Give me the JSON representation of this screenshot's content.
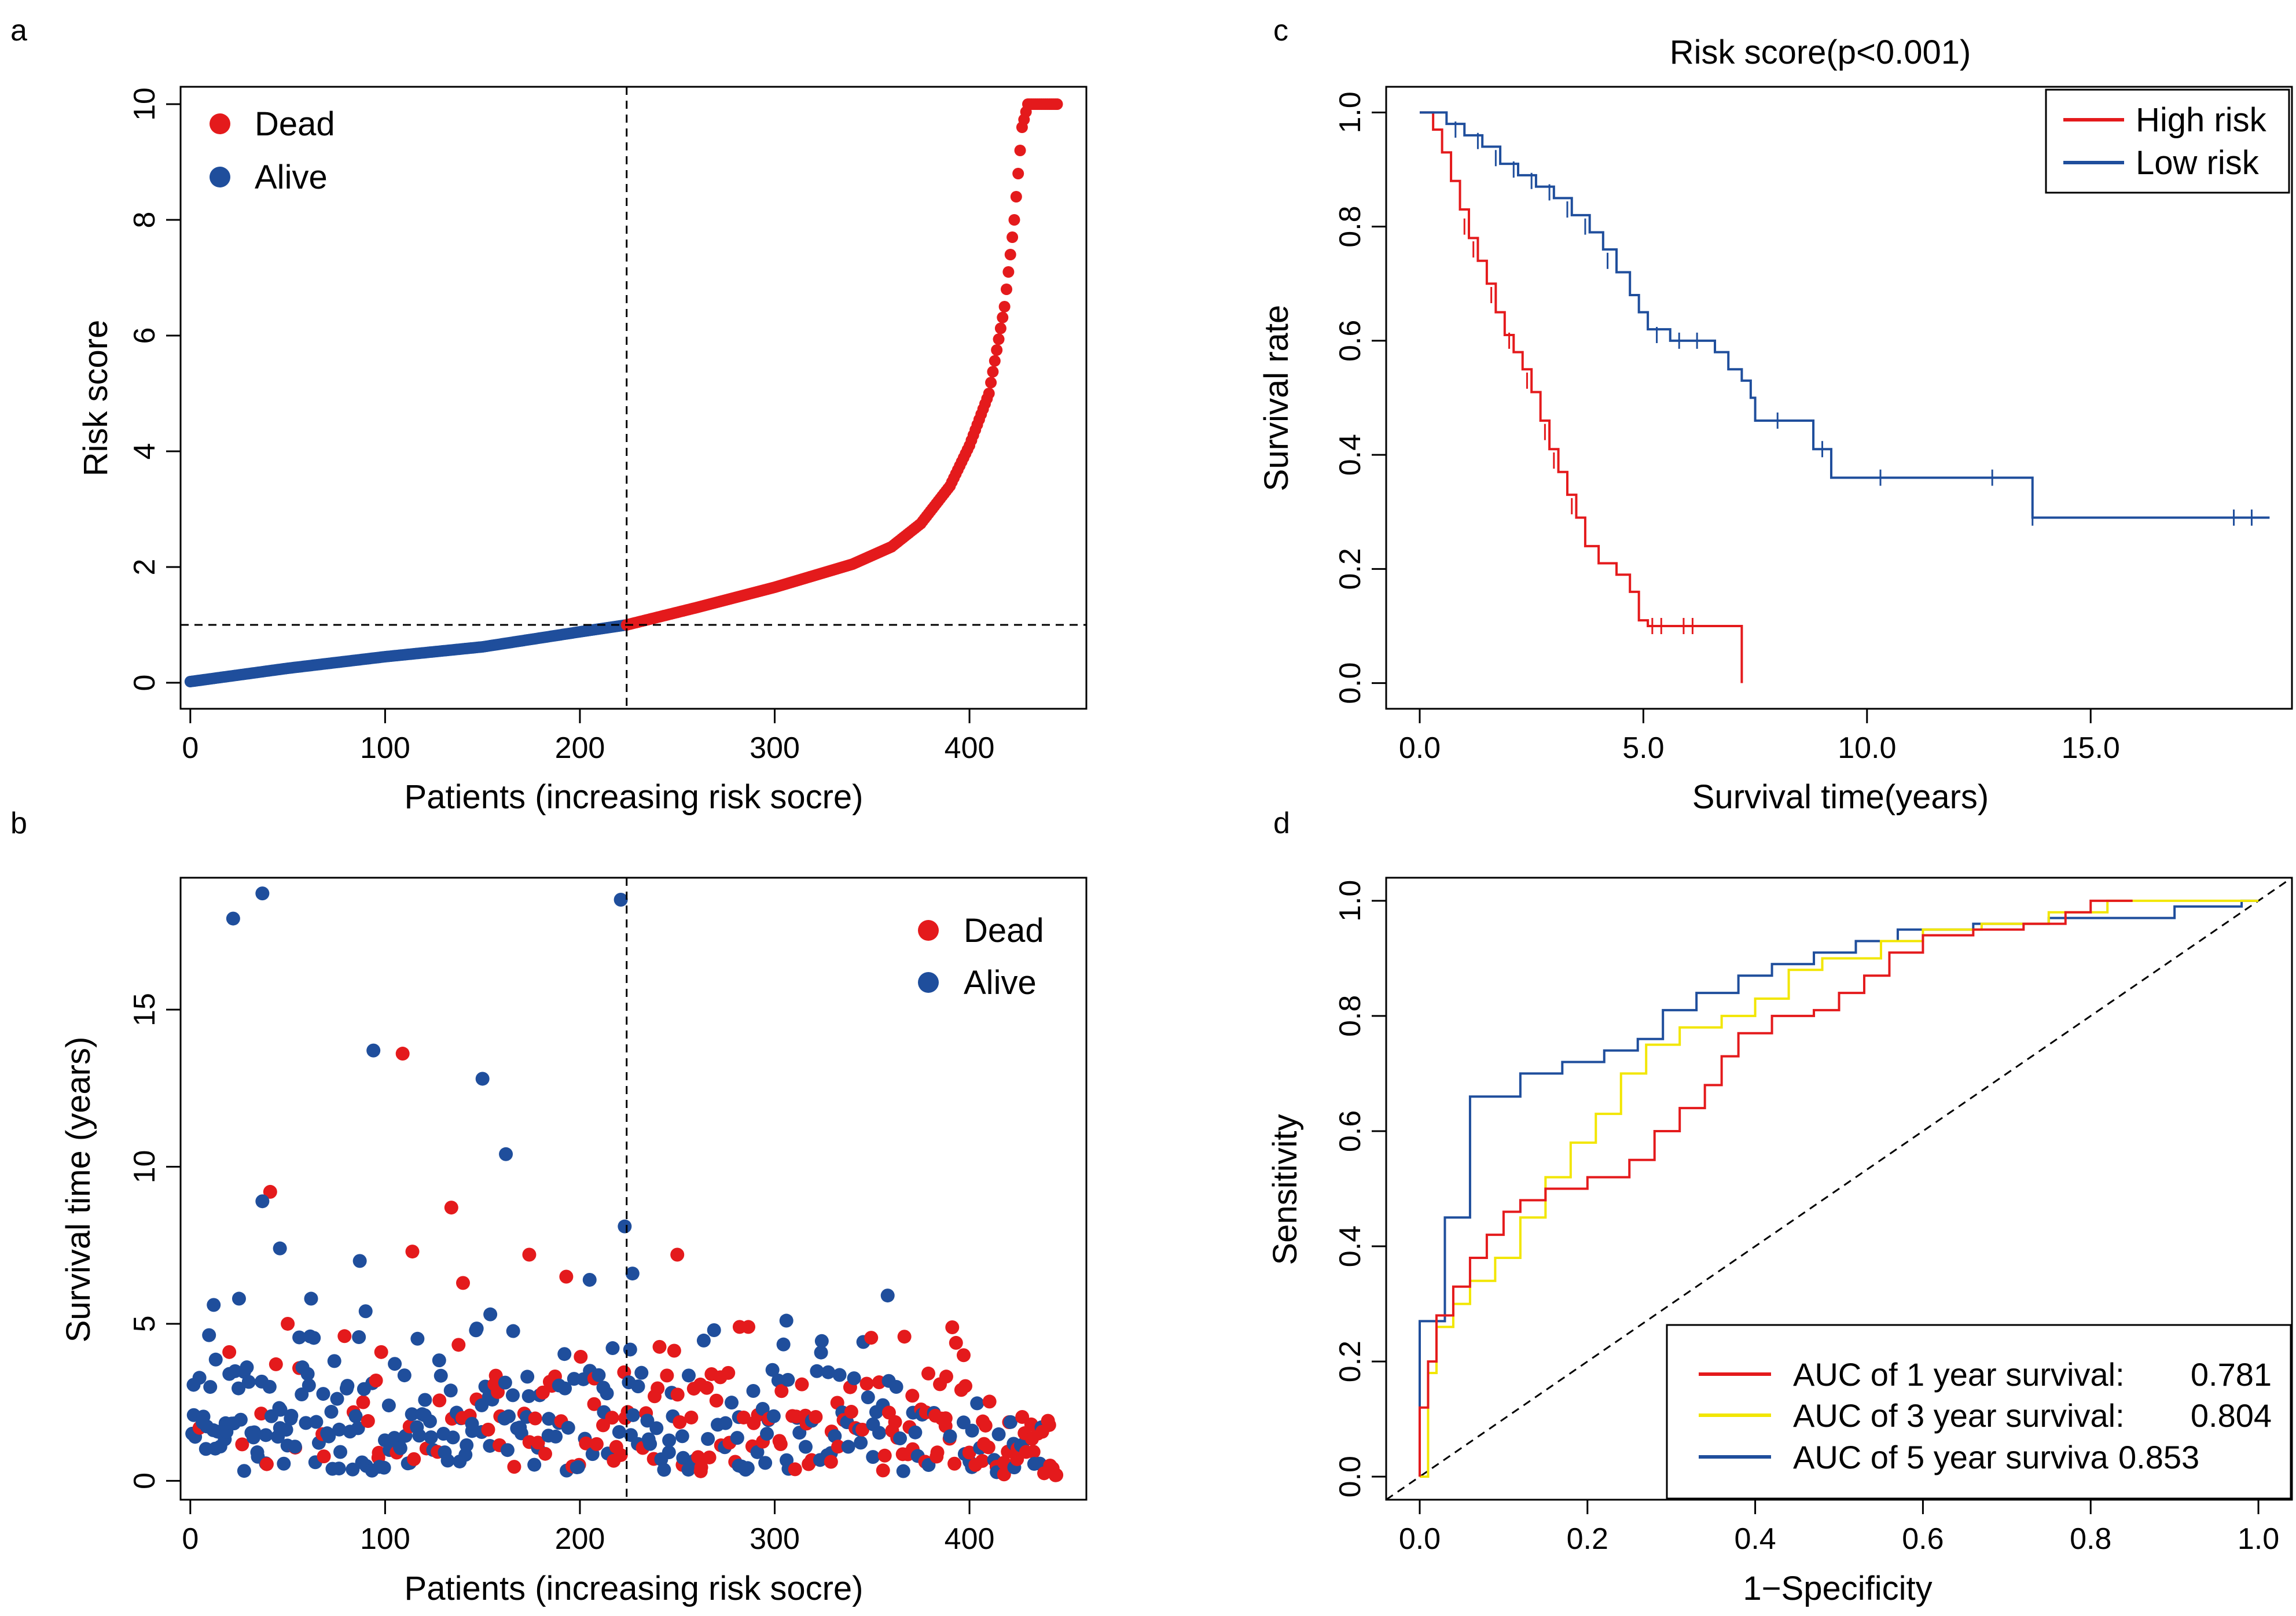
{
  "colors": {
    "dead": "#e41a1c",
    "alive": "#1f4e9c",
    "high": "#e41a1c",
    "low": "#1f4e9c",
    "auc1": "#e41a1c",
    "auc3": "#f2e600",
    "auc5": "#1f4e9c"
  },
  "panels": {
    "a": {
      "label": "a"
    },
    "b": {
      "label": "b"
    },
    "c": {
      "label": "c"
    },
    "d": {
      "label": "d"
    }
  },
  "chart_data": [
    {
      "id": "a",
      "type": "scatter",
      "title": "",
      "xlabel": "Patients (increasing risk socre)",
      "ylabel": "Risk score",
      "xlim": [
        -5,
        460
      ],
      "ylim": [
        -0.45,
        10.3
      ],
      "xticks": [
        0,
        100,
        200,
        300,
        400
      ],
      "yticks": [
        0,
        2,
        4,
        6,
        8,
        10
      ],
      "cutoff_x": 224,
      "cutoff_y": 1.0,
      "n": 446,
      "legend": {
        "position": "top-left",
        "entries": [
          "Dead",
          "Alive"
        ]
      },
      "curve_knots": [
        [
          0,
          0.02
        ],
        [
          50,
          0.25
        ],
        [
          100,
          0.45
        ],
        [
          150,
          0.62
        ],
        [
          200,
          0.88
        ],
        [
          224,
          1.0
        ],
        [
          260,
          1.3
        ],
        [
          300,
          1.65
        ],
        [
          340,
          2.05
        ],
        [
          360,
          2.35
        ],
        [
          375,
          2.75
        ],
        [
          390,
          3.4
        ],
        [
          400,
          4.1
        ],
        [
          410,
          5.0
        ],
        [
          418,
          6.5
        ],
        [
          423,
          8.0
        ],
        [
          427,
          9.6
        ],
        [
          430,
          10.0
        ],
        [
          446,
          10.0
        ]
      ]
    },
    {
      "id": "b",
      "type": "scatter",
      "title": "",
      "xlabel": "Patients (increasing risk socre)",
      "ylabel": "Survival time (years)",
      "xlim": [
        -5,
        460
      ],
      "ylim": [
        -0.6,
        19.2
      ],
      "xticks": [
        0,
        100,
        200,
        300,
        400
      ],
      "yticks": [
        0,
        5,
        10,
        15
      ],
      "cutoff_x": 224,
      "legend": {
        "position": "top-right",
        "entries": [
          "Dead",
          "Alive"
        ]
      },
      "outliers": [
        {
          "x": 22,
          "y": 17.9,
          "s": "alive"
        },
        {
          "x": 37,
          "y": 18.7,
          "s": "alive"
        },
        {
          "x": 221,
          "y": 18.5,
          "s": "alive"
        },
        {
          "x": 94,
          "y": 13.7,
          "s": "alive"
        },
        {
          "x": 109,
          "y": 13.6,
          "s": "dead"
        },
        {
          "x": 150,
          "y": 12.8,
          "s": "alive"
        },
        {
          "x": 162,
          "y": 10.4,
          "s": "alive"
        },
        {
          "x": 41,
          "y": 9.2,
          "s": "dead"
        },
        {
          "x": 37,
          "y": 8.9,
          "s": "alive"
        },
        {
          "x": 134,
          "y": 8.7,
          "s": "dead"
        },
        {
          "x": 223,
          "y": 8.1,
          "s": "alive"
        },
        {
          "x": 46,
          "y": 7.4,
          "s": "alive"
        },
        {
          "x": 114,
          "y": 7.3,
          "s": "dead"
        },
        {
          "x": 174,
          "y": 7.2,
          "s": "dead"
        },
        {
          "x": 250,
          "y": 7.2,
          "s": "dead"
        },
        {
          "x": 87,
          "y": 7.0,
          "s": "alive"
        },
        {
          "x": 193,
          "y": 6.5,
          "s": "dead"
        },
        {
          "x": 205,
          "y": 6.4,
          "s": "alive"
        },
        {
          "x": 140,
          "y": 6.3,
          "s": "dead"
        },
        {
          "x": 227,
          "y": 6.6,
          "s": "alive"
        },
        {
          "x": 358,
          "y": 5.9,
          "s": "alive"
        },
        {
          "x": 12,
          "y": 5.6,
          "s": "alive"
        },
        {
          "x": 25,
          "y": 5.8,
          "s": "alive"
        },
        {
          "x": 62,
          "y": 5.8,
          "s": "alive"
        },
        {
          "x": 90,
          "y": 5.4,
          "s": "alive"
        },
        {
          "x": 154,
          "y": 5.3,
          "s": "alive"
        },
        {
          "x": 306,
          "y": 5.1,
          "s": "alive"
        },
        {
          "x": 50,
          "y": 5.0,
          "s": "dead"
        },
        {
          "x": 282,
          "y": 4.9,
          "s": "dead"
        },
        {
          "x": 397,
          "y": 4.0,
          "s": "dead"
        },
        {
          "x": 98,
          "y": 4.1,
          "s": "dead"
        },
        {
          "x": 20,
          "y": 4.1,
          "s": "dead"
        }
      ],
      "pattern": "dead share rises with patient index; most survival times between 0 and 4 years"
    },
    {
      "id": "c",
      "type": "line",
      "title": "Risk score(p<0.001)",
      "xlabel": "Survival time(years)",
      "ylabel": "Survival rate",
      "xlim": [
        -0.75,
        19.5
      ],
      "ylim": [
        -0.045,
        1.045
      ],
      "xticks": [
        0,
        5,
        10,
        15
      ],
      "yticks": [
        0.0,
        0.2,
        0.4,
        0.6,
        0.8,
        1.0
      ],
      "legend": {
        "position": "top-right",
        "entries": [
          "High risk",
          "Low risk"
        ]
      },
      "series": [
        {
          "name": "High risk",
          "color_key": "high",
          "steps": [
            [
              0,
              1.0
            ],
            [
              0.3,
              0.97
            ],
            [
              0.5,
              0.93
            ],
            [
              0.7,
              0.88
            ],
            [
              0.9,
              0.83
            ],
            [
              1.1,
              0.78
            ],
            [
              1.3,
              0.74
            ],
            [
              1.5,
              0.7
            ],
            [
              1.7,
              0.65
            ],
            [
              1.9,
              0.61
            ],
            [
              2.1,
              0.58
            ],
            [
              2.3,
              0.55
            ],
            [
              2.5,
              0.51
            ],
            [
              2.7,
              0.46
            ],
            [
              2.9,
              0.41
            ],
            [
              3.1,
              0.37
            ],
            [
              3.3,
              0.33
            ],
            [
              3.5,
              0.29
            ],
            [
              3.7,
              0.24
            ],
            [
              4.0,
              0.21
            ],
            [
              4.4,
              0.19
            ],
            [
              4.7,
              0.16
            ],
            [
              4.9,
              0.11
            ],
            [
              5.1,
              0.1
            ],
            [
              7.2,
              0.1
            ],
            [
              7.2,
              0.0
            ]
          ],
          "censor": [
            [
              1.0,
              0.8
            ],
            [
              1.2,
              0.76
            ],
            [
              1.6,
              0.68
            ],
            [
              2.0,
              0.6
            ],
            [
              2.4,
              0.53
            ],
            [
              2.8,
              0.44
            ],
            [
              3.0,
              0.39
            ],
            [
              3.4,
              0.31
            ],
            [
              5.2,
              0.1
            ],
            [
              5.4,
              0.1
            ],
            [
              5.9,
              0.1
            ],
            [
              6.1,
              0.1
            ]
          ]
        },
        {
          "name": "Low risk",
          "color_key": "low",
          "steps": [
            [
              0,
              1.0
            ],
            [
              0.6,
              0.98
            ],
            [
              1.0,
              0.96
            ],
            [
              1.4,
              0.94
            ],
            [
              1.8,
              0.91
            ],
            [
              2.2,
              0.89
            ],
            [
              2.6,
              0.87
            ],
            [
              3.0,
              0.85
            ],
            [
              3.4,
              0.82
            ],
            [
              3.8,
              0.79
            ],
            [
              4.1,
              0.76
            ],
            [
              4.4,
              0.72
            ],
            [
              4.7,
              0.68
            ],
            [
              4.9,
              0.65
            ],
            [
              5.1,
              0.62
            ],
            [
              5.6,
              0.6
            ],
            [
              6.4,
              0.6
            ],
            [
              6.6,
              0.58
            ],
            [
              6.9,
              0.55
            ],
            [
              7.2,
              0.53
            ],
            [
              7.4,
              0.5
            ],
            [
              7.5,
              0.46
            ],
            [
              8.6,
              0.46
            ],
            [
              8.8,
              0.41
            ],
            [
              9.2,
              0.36
            ],
            [
              13.6,
              0.36
            ],
            [
              13.7,
              0.29
            ],
            [
              19.0,
              0.29
            ]
          ],
          "censor": [
            [
              0.8,
              0.97
            ],
            [
              1.3,
              0.95
            ],
            [
              1.7,
              0.92
            ],
            [
              2.1,
              0.9
            ],
            [
              2.5,
              0.88
            ],
            [
              2.9,
              0.86
            ],
            [
              3.3,
              0.83
            ],
            [
              3.7,
              0.8
            ],
            [
              4.2,
              0.74
            ],
            [
              5.3,
              0.61
            ],
            [
              5.8,
              0.6
            ],
            [
              6.2,
              0.6
            ],
            [
              8.0,
              0.46
            ],
            [
              9.0,
              0.41
            ],
            [
              10.3,
              0.36
            ],
            [
              12.8,
              0.36
            ],
            [
              13.7,
              0.29
            ],
            [
              18.2,
              0.29
            ],
            [
              18.6,
              0.29
            ]
          ]
        }
      ]
    },
    {
      "id": "d",
      "type": "line",
      "title": "",
      "xlabel": "1−Specificity",
      "ylabel": "Sensitivity",
      "xlim": [
        -0.04,
        1.04
      ],
      "ylim": [
        -0.04,
        1.04
      ],
      "xticks": [
        0.0,
        0.2,
        0.4,
        0.6,
        0.8,
        1.0
      ],
      "yticks": [
        0.0,
        0.2,
        0.4,
        0.6,
        0.8,
        1.0
      ],
      "legend": {
        "position": "bottom-right"
      },
      "series": [
        {
          "name": "AUC of 1 year survival:",
          "auc": "0.781",
          "color_key": "auc1",
          "points": [
            [
              0,
              0
            ],
            [
              0,
              0.12
            ],
            [
              0.01,
              0.2
            ],
            [
              0.02,
              0.28
            ],
            [
              0.04,
              0.33
            ],
            [
              0.06,
              0.38
            ],
            [
              0.08,
              0.42
            ],
            [
              0.1,
              0.46
            ],
            [
              0.12,
              0.48
            ],
            [
              0.15,
              0.5
            ],
            [
              0.2,
              0.52
            ],
            [
              0.25,
              0.55
            ],
            [
              0.28,
              0.6
            ],
            [
              0.31,
              0.64
            ],
            [
              0.34,
              0.68
            ],
            [
              0.36,
              0.73
            ],
            [
              0.38,
              0.77
            ],
            [
              0.42,
              0.8
            ],
            [
              0.47,
              0.81
            ],
            [
              0.5,
              0.84
            ],
            [
              0.53,
              0.87
            ],
            [
              0.56,
              0.91
            ],
            [
              0.6,
              0.94
            ],
            [
              0.66,
              0.95
            ],
            [
              0.72,
              0.96
            ],
            [
              0.77,
              0.98
            ],
            [
              0.8,
              1.0
            ],
            [
              0.85,
              1.0
            ]
          ]
        },
        {
          "name": "AUC of 3 year survival:",
          "auc": "0.804",
          "color_key": "auc3",
          "points": [
            [
              0,
              0
            ],
            [
              0.01,
              0.18
            ],
            [
              0.02,
              0.26
            ],
            [
              0.04,
              0.3
            ],
            [
              0.06,
              0.34
            ],
            [
              0.09,
              0.38
            ],
            [
              0.12,
              0.45
            ],
            [
              0.15,
              0.52
            ],
            [
              0.18,
              0.58
            ],
            [
              0.21,
              0.63
            ],
            [
              0.24,
              0.7
            ],
            [
              0.27,
              0.75
            ],
            [
              0.31,
              0.78
            ],
            [
              0.36,
              0.8
            ],
            [
              0.4,
              0.83
            ],
            [
              0.44,
              0.88
            ],
            [
              0.48,
              0.9
            ],
            [
              0.55,
              0.93
            ],
            [
              0.6,
              0.95
            ],
            [
              0.67,
              0.96
            ],
            [
              0.75,
              0.98
            ],
            [
              0.82,
              1.0
            ],
            [
              1.0,
              1.0
            ]
          ]
        },
        {
          "name": "AUC of 5 year surviva",
          "auc": "0.853",
          "color_key": "auc5",
          "points": [
            [
              0,
              0
            ],
            [
              0,
              0.27
            ],
            [
              0.03,
              0.27
            ],
            [
              0.03,
              0.45
            ],
            [
              0.06,
              0.45
            ],
            [
              0.06,
              0.66
            ],
            [
              0.12,
              0.66
            ],
            [
              0.12,
              0.7
            ],
            [
              0.17,
              0.7
            ],
            [
              0.17,
              0.72
            ],
            [
              0.22,
              0.74
            ],
            [
              0.26,
              0.76
            ],
            [
              0.29,
              0.81
            ],
            [
              0.33,
              0.84
            ],
            [
              0.38,
              0.87
            ],
            [
              0.42,
              0.89
            ],
            [
              0.47,
              0.91
            ],
            [
              0.52,
              0.93
            ],
            [
              0.57,
              0.95
            ],
            [
              0.66,
              0.96
            ],
            [
              0.75,
              0.97
            ],
            [
              0.83,
              0.97
            ],
            [
              0.9,
              0.99
            ],
            [
              0.98,
              0.99
            ],
            [
              0.98,
              1.0
            ],
            [
              1.0,
              1.0
            ]
          ]
        }
      ],
      "reference_diagonal": true
    }
  ]
}
